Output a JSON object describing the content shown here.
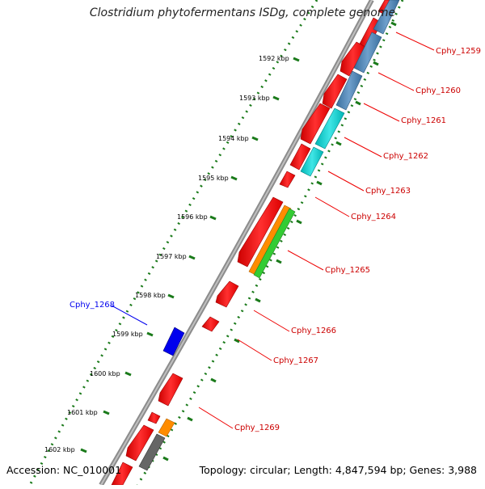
{
  "title": "Clostridium phytofermentans ISDg, complete genome",
  "footer": {
    "accession": "Accession: NC_010001",
    "topology": "Topology: circular; Length: 4,847,594 bp; Genes: 3,988"
  },
  "colors": {
    "gene_forward": "#ff0000",
    "cog_steelblue": "#4682b4",
    "cog_cyan": "#00cccc",
    "cog_orange": "#ff8c00",
    "cog_green": "#33cc33",
    "cog_gray": "#666666",
    "highlight_gene": "#0000ff",
    "gene_label": "#cc0000",
    "backbone": "#888888",
    "tick": "#1a7a1a"
  },
  "ruler_labels": [
    "1592 kbp",
    "1593 kbp",
    "1594 kbp",
    "1595 kbp",
    "1596 kbp",
    "1597 kbp",
    "1598 kbp",
    "1599 kbp",
    "1600 kbp",
    "1601 kbp",
    "1602 kbp"
  ],
  "gene_labels": [
    {
      "name": "Cphy_1259",
      "strand": "right"
    },
    {
      "name": "Cphy_1260",
      "strand": "right"
    },
    {
      "name": "Cphy_1261",
      "strand": "right"
    },
    {
      "name": "Cphy_1262",
      "strand": "right"
    },
    {
      "name": "Cphy_1263",
      "strand": "right"
    },
    {
      "name": "Cphy_1264",
      "strand": "right"
    },
    {
      "name": "Cphy_1265",
      "strand": "right"
    },
    {
      "name": "Cphy_1266",
      "strand": "right"
    },
    {
      "name": "Cphy_1267",
      "strand": "right"
    },
    {
      "name": "Cphy_1268",
      "strand": "left"
    },
    {
      "name": "Cphy_1269",
      "strand": "right"
    }
  ]
}
